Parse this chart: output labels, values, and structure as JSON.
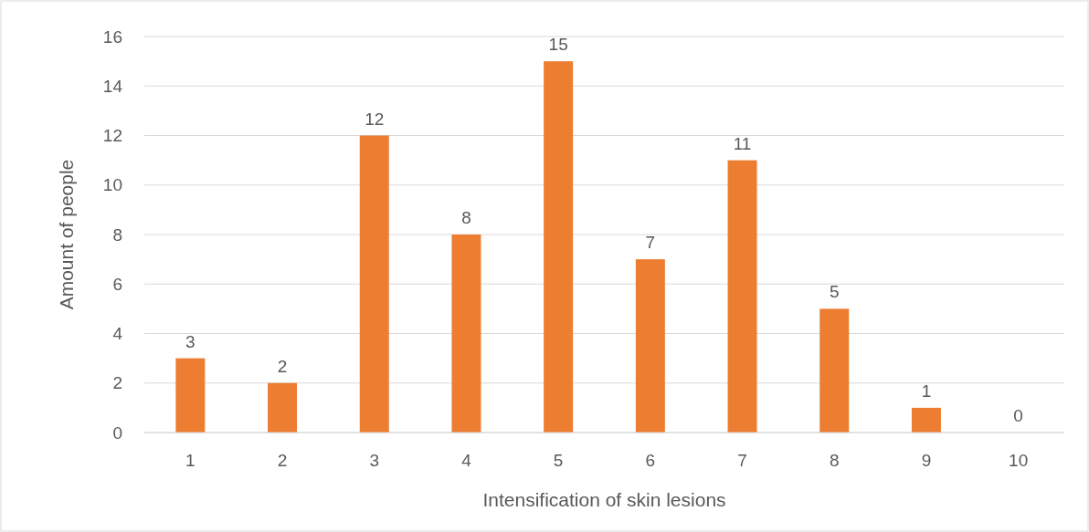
{
  "chart_data": {
    "type": "bar",
    "xlabel": "Intensification of skin lesions",
    "ylabel": "Amount of people",
    "categories": [
      "1",
      "2",
      "3",
      "4",
      "5",
      "6",
      "7",
      "8",
      "9",
      "10"
    ],
    "values": [
      3,
      2,
      12,
      8,
      15,
      7,
      11,
      5,
      1,
      0
    ],
    "color": "#ed7d31",
    "ylim": [
      0,
      16
    ],
    "yticks": [
      0,
      2,
      4,
      6,
      8,
      10,
      12,
      14,
      16
    ],
    "grid": "y",
    "data_labels": true
  }
}
